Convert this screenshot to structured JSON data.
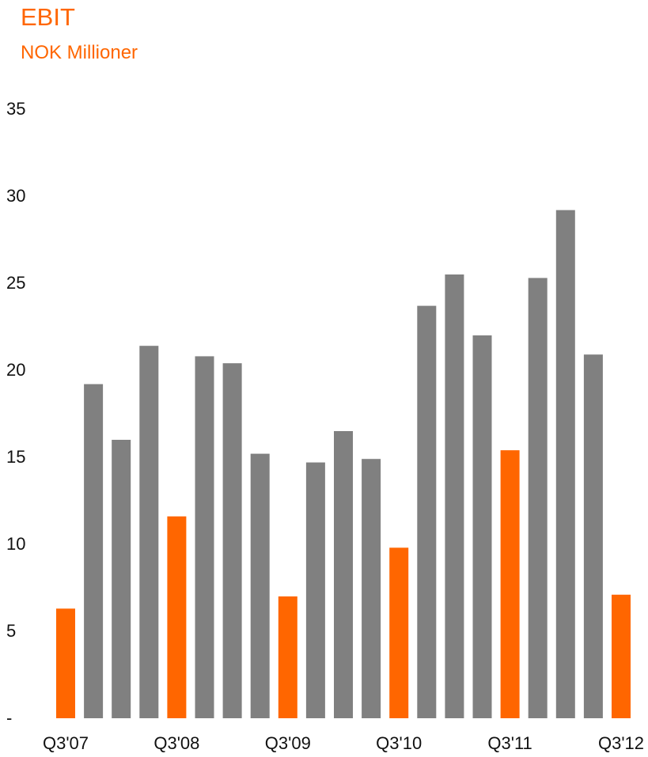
{
  "chart_data": {
    "type": "bar",
    "title": "EBIT",
    "subtitle": "NOK Millioner",
    "xlabel": "",
    "ylabel": "",
    "ylim": [
      0,
      35
    ],
    "y_ticks": [
      {
        "value": 0,
        "label": "-"
      },
      {
        "value": 5,
        "label": "5"
      },
      {
        "value": 10,
        "label": "10"
      },
      {
        "value": 15,
        "label": "15"
      },
      {
        "value": 20,
        "label": "20"
      },
      {
        "value": 25,
        "label": "25"
      },
      {
        "value": 30,
        "label": "30"
      },
      {
        "value": 35,
        "label": "35"
      }
    ],
    "x_tick_labels": [
      {
        "index": 0,
        "label": "Q3'07"
      },
      {
        "index": 4,
        "label": "Q3'08"
      },
      {
        "index": 8,
        "label": "Q3'09"
      },
      {
        "index": 12,
        "label": "Q3'10"
      },
      {
        "index": 16,
        "label": "Q3'11"
      },
      {
        "index": 20,
        "label": "Q3'12"
      }
    ],
    "values": [
      6.3,
      19.2,
      16.0,
      21.4,
      11.6,
      20.8,
      20.4,
      15.2,
      7.0,
      14.7,
      16.5,
      14.9,
      9.8,
      23.7,
      25.5,
      22.0,
      15.4,
      25.3,
      29.2,
      20.9,
      7.1
    ],
    "highlighted_indices": [
      0,
      4,
      8,
      12,
      16,
      20
    ],
    "grid": false,
    "legend": "none",
    "colors": {
      "bar": "#808080",
      "highlight": "#ff6600",
      "title": "#ff6600",
      "text": "#111111"
    }
  }
}
